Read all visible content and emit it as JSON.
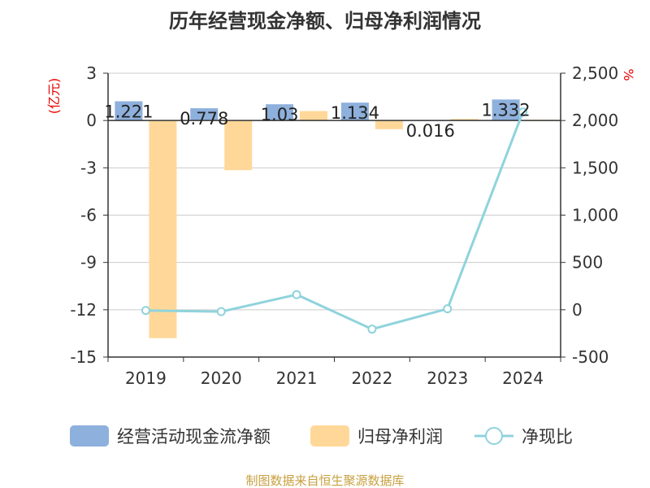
{
  "title": "历年经营现金净额、归母净利润情况",
  "left_unit": "(亿元)",
  "right_unit": "%",
  "source": "制图数据来自恒生聚源数据库",
  "colors": {
    "cash": "#8eb0dc",
    "profit": "#ffd899",
    "ratio": "#8fd3dc",
    "grid": "#cccccc",
    "axis": "#333333"
  },
  "chart_data": {
    "type": "bar",
    "title": "历年经营现金净额、归母净利润情况",
    "categories": [
      "2019",
      "2020",
      "2021",
      "2022",
      "2023",
      "2024"
    ],
    "y_left": {
      "label": "(亿元)",
      "min": -15,
      "max": 3,
      "ticks": [
        3,
        0,
        -3,
        -6,
        -9,
        -12,
        -15
      ]
    },
    "y_right": {
      "label": "%",
      "min": -500,
      "max": 2500,
      "ticks": [
        2500,
        2000,
        1500,
        1000,
        500,
        0,
        -500
      ],
      "tick_labels": [
        "2,500",
        "2,000",
        "1,500",
        "1,000",
        "500",
        "0",
        "-500"
      ]
    },
    "series": [
      {
        "name": "经营活动现金流净额",
        "type": "bar",
        "axis": "left",
        "values": [
          1.221,
          0.778,
          1.03,
          1.134,
          0.016,
          1.332
        ],
        "labels": [
          "1.221",
          "0.778",
          "1.03",
          "1.134",
          "0.016",
          "1.332"
        ]
      },
      {
        "name": "归母净利润",
        "type": "bar",
        "axis": "left",
        "values": [
          -13.8,
          -3.15,
          0.6,
          -0.55,
          0.1,
          0.05
        ]
      },
      {
        "name": "净现比",
        "type": "line",
        "axis": "right",
        "values": [
          -8,
          -20,
          160,
          -205,
          10,
          2090
        ]
      }
    ],
    "legend_position": "bottom",
    "grid": true
  }
}
